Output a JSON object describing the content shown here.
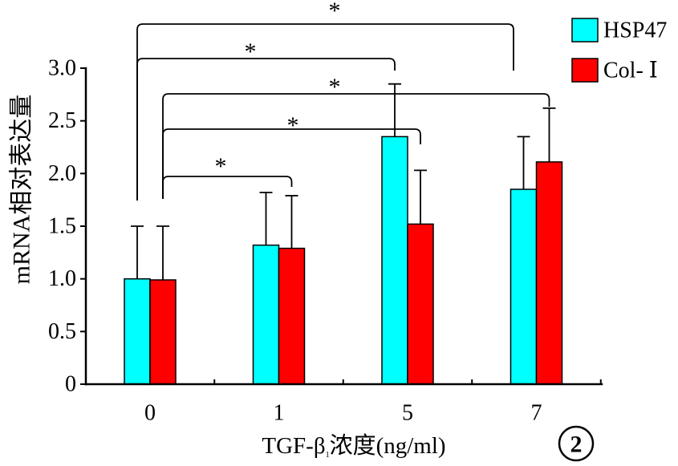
{
  "chart_data": {
    "type": "bar",
    "ylabel": "mRNA相对表达量",
    "xlabel": {
      "main": "TGF-β",
      "sub": "1",
      "unit": "浓度(ng/ml)"
    },
    "categories": [
      "0",
      "1",
      "5",
      "7"
    ],
    "ylim": [
      0,
      3.0
    ],
    "yticks": [
      "0",
      "0.5",
      "1.0",
      "1.5",
      "2.0",
      "2.5",
      "3.0"
    ],
    "series": [
      {
        "name": "HSP47",
        "color": "#00FFFF",
        "values": [
          1.0,
          1.32,
          2.35,
          1.85
        ],
        "errors": [
          0.5,
          0.5,
          0.5,
          0.5
        ]
      },
      {
        "name": "Col- Ⅰ",
        "color": "#FF0000",
        "values": [
          0.99,
          1.29,
          1.52,
          2.11
        ],
        "errors": [
          0.51,
          0.5,
          0.51,
          0.51
        ]
      }
    ],
    "significance": [
      {
        "series": "HSP47",
        "between": [
          "0",
          "7"
        ],
        "label": "*"
      },
      {
        "series": "HSP47",
        "between": [
          "0",
          "5"
        ],
        "label": "*"
      },
      {
        "series": "Col- Ⅰ",
        "between": [
          "0",
          "7"
        ],
        "label": "*"
      },
      {
        "series": "Col- Ⅰ",
        "between": [
          "0",
          "5"
        ],
        "label": "*"
      },
      {
        "series": "Col- Ⅰ",
        "between": [
          "0",
          "1"
        ],
        "label": "*"
      }
    ],
    "legend": "top-right",
    "grid": false
  },
  "panel_label": "2"
}
